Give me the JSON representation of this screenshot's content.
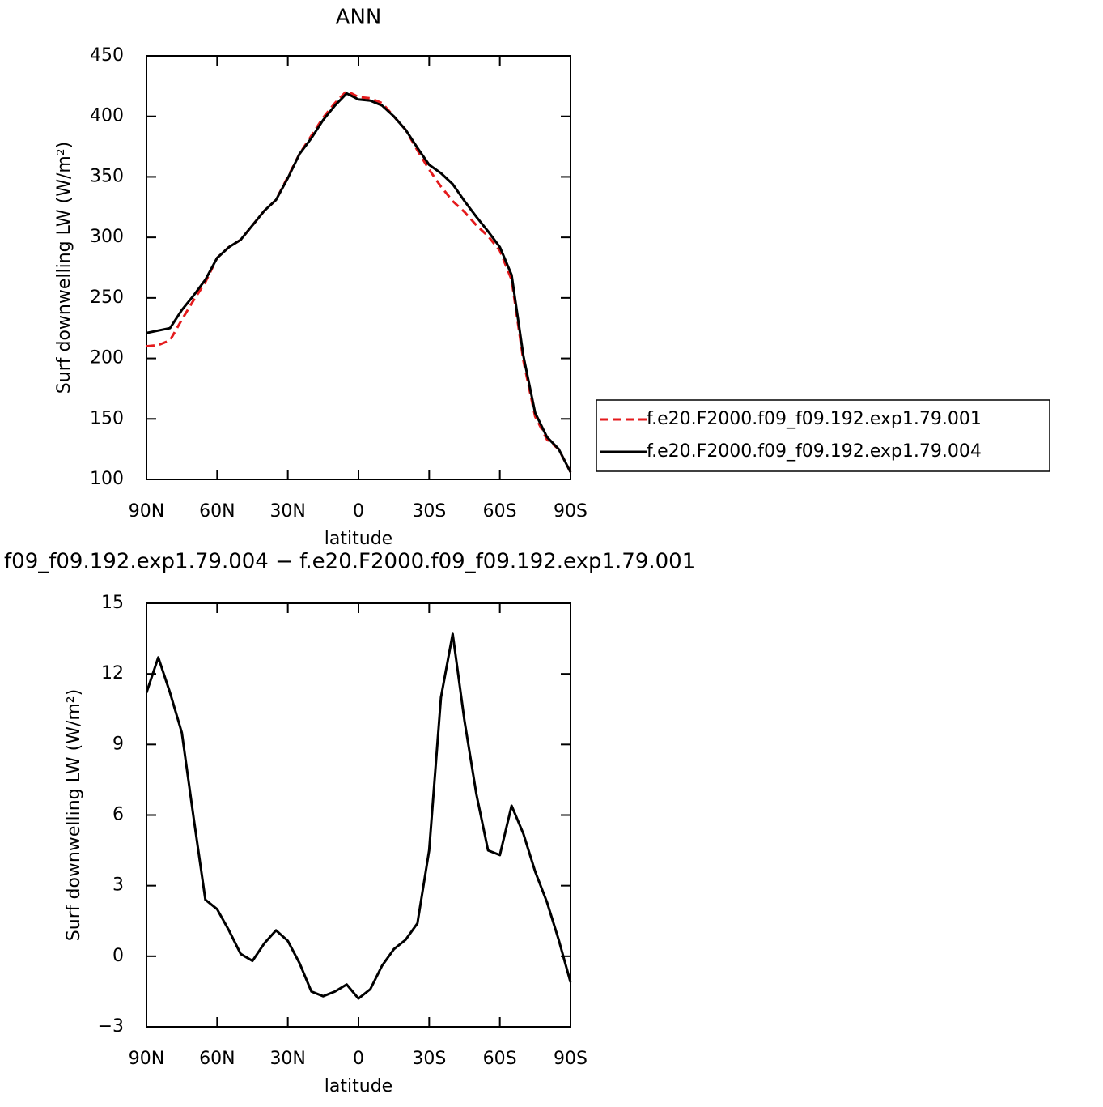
{
  "chart_data": [
    {
      "type": "line",
      "title": "ANN",
      "xlabel": "latitude",
      "ylabel": "Surf downwelling LW (W/m²)",
      "x": [
        90,
        85,
        80,
        75,
        70,
        65,
        60,
        55,
        50,
        45,
        40,
        35,
        30,
        25,
        20,
        15,
        10,
        5,
        0,
        -5,
        -10,
        -15,
        -20,
        -25,
        -30,
        -35,
        -40,
        -45,
        -50,
        -55,
        -60,
        -65,
        -70,
        -75,
        -80,
        -85,
        -90
      ],
      "xlim": [
        90,
        -90
      ],
      "xticks": [
        {
          "value": 90,
          "label": "90N"
        },
        {
          "value": 60,
          "label": "60N"
        },
        {
          "value": 30,
          "label": "30N"
        },
        0,
        {
          "value": -30,
          "label": "30S"
        },
        {
          "value": -60,
          "label": "60S"
        },
        {
          "value": -90,
          "label": "90S"
        }
      ],
      "ylim": [
        100,
        450
      ],
      "yticks": [
        100,
        150,
        200,
        250,
        300,
        350,
        400,
        450
      ],
      "legend": "right",
      "series": [
        {
          "name": "f.e20.F2000.f09_f09.192.exp1.79.001",
          "color": "#e41a1c",
          "dash": true,
          "values": [
            210,
            211,
            215,
            232,
            248,
            263,
            283,
            292,
            298,
            310,
            322,
            331,
            350,
            369,
            384,
            399,
            411,
            421,
            416,
            415,
            411,
            400,
            389,
            372,
            356,
            342,
            330,
            321,
            310,
            301,
            289,
            265,
            198,
            152,
            133,
            125,
            106
          ]
        },
        {
          "name": "f.e20.F2000.f09_f09.192.exp1.79.004",
          "color": "#000000",
          "dash": false,
          "values": [
            221,
            223,
            225,
            240,
            252,
            265,
            283,
            292,
            298,
            310,
            322,
            331,
            349,
            369,
            382,
            397,
            409,
            419,
            414,
            413,
            409,
            400,
            389,
            374,
            360,
            353,
            344,
            330,
            317,
            305,
            292,
            269,
            202,
            155,
            135,
            125,
            106
          ]
        }
      ]
    },
    {
      "type": "line",
      "title": "f09_f09.192.exp1.79.004 − f.e20.F2000.f09_f09.192.exp1.79.001",
      "xlabel": "latitude",
      "ylabel": "Surf downwelling LW (W/m²)",
      "x": [
        90,
        85,
        80,
        75,
        70,
        65,
        60,
        55,
        50,
        45,
        40,
        35,
        30,
        25,
        20,
        15,
        10,
        5,
        0,
        -5,
        -10,
        -15,
        -20,
        -25,
        -30,
        -35,
        -40,
        -45,
        -50,
        -55,
        -60,
        -65,
        -70,
        -75,
        -80,
        -85,
        -90
      ],
      "xlim": [
        90,
        -90
      ],
      "xticks": [
        {
          "value": 90,
          "label": "90N"
        },
        {
          "value": 60,
          "label": "60N"
        },
        {
          "value": 30,
          "label": "30N"
        },
        0,
        {
          "value": -30,
          "label": "30S"
        },
        {
          "value": -60,
          "label": "60S"
        },
        {
          "value": -90,
          "label": "90S"
        }
      ],
      "ylim": [
        -3,
        15
      ],
      "yticks": [
        {
          "value": -3,
          "label": "−3"
        },
        0,
        3,
        6,
        9,
        12,
        15
      ],
      "series": [
        {
          "color": "#000000",
          "dash": false,
          "values": [
            11.2,
            12.7,
            11.2,
            9.5,
            5.9,
            2.4,
            2.0,
            1.1,
            0.1,
            -0.2,
            0.55,
            1.1,
            0.65,
            -0.3,
            -1.5,
            -1.7,
            -1.5,
            -1.2,
            -1.8,
            -1.4,
            -0.4,
            0.3,
            0.7,
            1.4,
            4.5,
            11.0,
            13.7,
            10.0,
            6.9,
            4.5,
            4.3,
            6.4,
            5.2,
            3.6,
            2.3,
            0.7,
            -1.1
          ]
        }
      ]
    }
  ]
}
